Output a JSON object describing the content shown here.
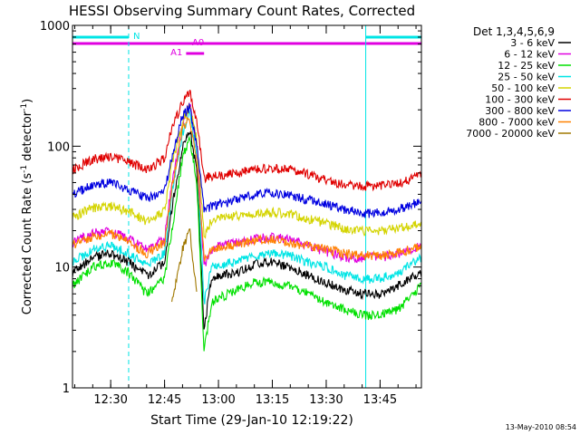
{
  "chart_data": {
    "type": "line",
    "title": "HESSI Observing Summary Count Rates, Corrected",
    "xlabel": "Start Time (29-Jan-10 12:19:22)",
    "ylabel_parts": {
      "main": "Corrected Count Rate (s",
      "sup1": "-1",
      "mid": " detector",
      "sup2": "-1",
      "end": ")"
    },
    "y_scale": "log",
    "ylim": [
      1,
      1000
    ],
    "xlim": [
      "12:19:22",
      "13:56:30"
    ],
    "x_ticks": [
      "12:30",
      "12:45",
      "13:00",
      "13:15",
      "13:30",
      "13:45"
    ],
    "y_ticks": [
      "1",
      "10",
      "100",
      "1000"
    ],
    "grid": false,
    "legend_placement": "right",
    "legend_title": "Det 1,3,4,5,6,9",
    "footer_date": "13-May-2010 08:54",
    "flags": [
      {
        "label": "N",
        "color": "#00e5e5",
        "intervals": [
          [
            "12:19:22",
            "12:35:00"
          ],
          [
            "13:41:00",
            "13:56:30"
          ]
        ]
      },
      {
        "label": "A0",
        "color": "#e000e0",
        "intervals": [
          [
            "12:19:22",
            "13:56:30"
          ]
        ]
      },
      {
        "label": "A1",
        "color": "#e000e0",
        "intervals": [
          [
            "12:51:00",
            "12:56:00"
          ]
        ]
      }
    ],
    "vertical_markers": [
      {
        "time": "12:35:00",
        "style": "dashed",
        "color": "#00e5e5"
      },
      {
        "time": "13:41:00",
        "style": "solid",
        "color": "#00e5e5"
      },
      {
        "time": "13:56:30",
        "style": "dashed",
        "color": "#00e5e5"
      }
    ],
    "times": [
      "12:19:22",
      "12:25",
      "12:30",
      "12:35",
      "12:40",
      "12:45",
      "12:47",
      "12:50",
      "12:52",
      "12:54",
      "12:56",
      "12:58",
      "13:00",
      "13:05",
      "13:10",
      "13:15",
      "13:20",
      "13:25",
      "13:30",
      "13:35",
      "13:40",
      "13:45",
      "13:50",
      "13:56:30"
    ],
    "series": [
      {
        "name": "3 - 6 keV",
        "color": "#000000",
        "values": [
          9,
          12,
          13,
          11,
          8.5,
          11,
          30,
          100,
          140,
          60,
          3,
          8,
          8.5,
          9,
          10.5,
          11,
          10,
          8.5,
          7.5,
          6.5,
          6,
          6,
          7,
          9
        ]
      },
      {
        "name": "6 - 12 keV",
        "color": "#e000e0",
        "values": [
          16,
          19,
          20,
          17,
          14,
          17,
          50,
          150,
          230,
          100,
          10,
          14,
          15,
          16,
          17,
          18,
          17,
          15,
          13.5,
          12,
          12,
          12,
          13,
          15
        ]
      },
      {
        "name": "12 - 25 keV",
        "color": "#00e000",
        "values": [
          7,
          10,
          11,
          9,
          6,
          8,
          20,
          80,
          120,
          50,
          2,
          5,
          5.5,
          6.5,
          7.5,
          7.5,
          7,
          6,
          5,
          4.5,
          4,
          4,
          4.5,
          7
        ]
      },
      {
        "name": "25 - 50 keV",
        "color": "#00e5e5",
        "values": [
          11,
          14,
          15,
          13,
          10.5,
          13,
          40,
          130,
          190,
          80,
          5,
          10,
          10.5,
          11,
          12.5,
          13,
          12.5,
          11,
          10,
          8.5,
          8,
          8,
          9,
          12
        ]
      },
      {
        "name": "50 - 100 keV",
        "color": "#d4d400",
        "values": [
          26,
          31,
          32,
          29,
          24,
          29,
          70,
          160,
          210,
          110,
          18,
          24,
          25,
          26.5,
          28,
          28.5,
          27.5,
          25,
          23,
          21,
          20,
          20,
          21,
          23
        ]
      },
      {
        "name": "100 - 300 keV",
        "color": "#e00000",
        "values": [
          64,
          78,
          82,
          75,
          63,
          80,
          140,
          230,
          280,
          160,
          55,
          57,
          58,
          60,
          64,
          66,
          64,
          59,
          52,
          48,
          47,
          47,
          49,
          58
        ]
      },
      {
        "name": "300 - 800 keV",
        "color": "#0000e0",
        "values": [
          40,
          48,
          50,
          44,
          37,
          42,
          80,
          180,
          210,
          100,
          30,
          32,
          33,
          36,
          40,
          41,
          39,
          36,
          33,
          30,
          28,
          28,
          30,
          35
        ]
      },
      {
        "name": "800 - 7000 keV",
        "color": "#ff8000",
        "values": [
          15,
          18,
          19,
          16,
          13,
          16,
          45,
          140,
          170,
          70,
          12,
          14,
          14.5,
          15.5,
          16.5,
          17,
          16,
          15,
          14,
          13,
          12.5,
          12.5,
          13,
          15
        ]
      },
      {
        "name": "7000 - 20000 keV",
        "color": "#a07800",
        "values": [
          null,
          null,
          null,
          null,
          null,
          null,
          5,
          14,
          20,
          6,
          null,
          null,
          null,
          null,
          null,
          null,
          null,
          null,
          null,
          null,
          null,
          null,
          null,
          null
        ]
      }
    ]
  }
}
